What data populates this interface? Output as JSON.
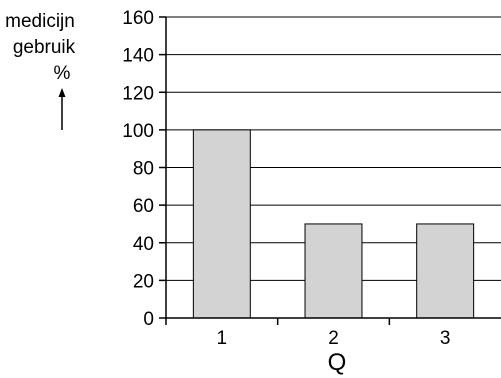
{
  "chart_data": {
    "type": "bar",
    "categories": [
      "1",
      "2",
      "3"
    ],
    "values": [
      100,
      50,
      50
    ],
    "title": "",
    "xlabel": "Q",
    "ylabel_lines": [
      "medicijn",
      "gebruik",
      "%"
    ],
    "ylim": [
      0,
      160
    ],
    "yticks": [
      0,
      20,
      40,
      60,
      80,
      100,
      120,
      140,
      160
    ],
    "grid": true,
    "bar_color": "#d3d3d3",
    "bar_edge_color": "#000000",
    "grid_color": "#000000"
  }
}
